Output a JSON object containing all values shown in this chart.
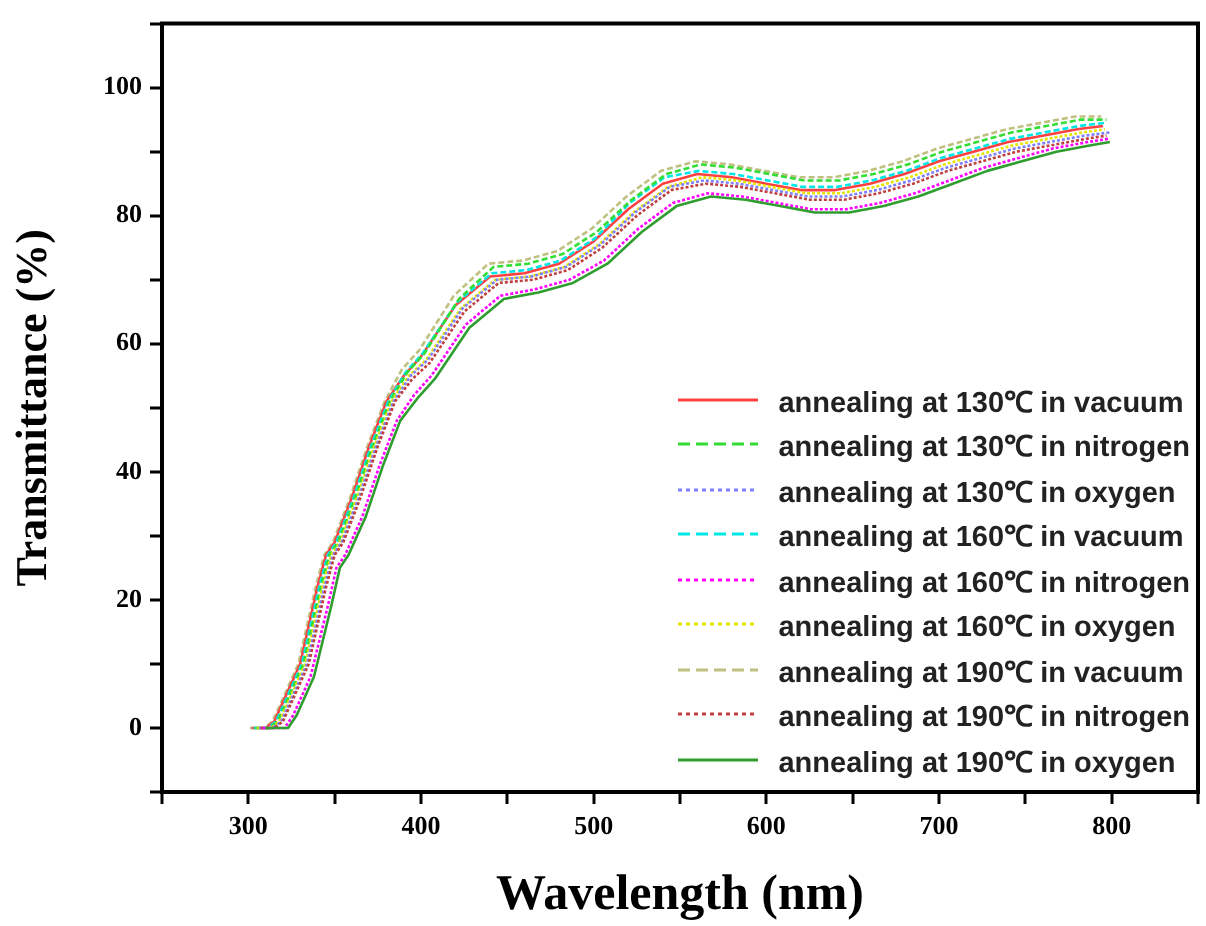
{
  "chart_data": {
    "type": "line",
    "xlabel": "Wavelength (nm)",
    "ylabel": "Transmittance (%)",
    "xlim": [
      250,
      850
    ],
    "xticks": [
      {
        "value": 250,
        "label": null
      },
      300,
      {
        "value": 350,
        "label": null
      },
      400,
      {
        "value": 450,
        "label": null
      },
      500,
      {
        "value": 550,
        "label": null
      },
      600,
      {
        "value": 650,
        "label": null
      },
      700,
      {
        "value": 750,
        "label": null
      },
      800,
      {
        "value": 850,
        "label": null
      }
    ],
    "ylim": [
      -10,
      110
    ],
    "yticks": [
      {
        "value": -10,
        "label": null
      },
      0,
      {
        "value": 10,
        "label": null
      },
      20,
      {
        "value": 30,
        "label": null
      },
      40,
      {
        "value": 50,
        "label": null
      },
      60,
      {
        "value": 70,
        "label": null
      },
      80,
      {
        "value": 90,
        "label": null
      },
      100,
      {
        "value": 110,
        "label": null
      }
    ],
    "grid": false,
    "legend": "right",
    "marker": "none",
    "series": [
      {
        "name": "annealing at 130℃ in vacuum",
        "color": "#ff4040",
        "line_style": "solid",
        "x": [
          302,
          310,
          315,
          320,
          330,
          340,
          345,
          350,
          360,
          370,
          380,
          390,
          400,
          420,
          440,
          460,
          480,
          500,
          520,
          540,
          560,
          580,
          600,
          620,
          640,
          660,
          680,
          700,
          720,
          740,
          760,
          780,
          795
        ],
        "values": [
          0,
          0,
          1,
          4,
          10,
          22,
          27,
          29,
          36,
          44,
          51,
          55,
          58,
          66,
          70.5,
          71,
          72.5,
          76,
          81,
          85,
          86.5,
          86,
          85,
          84,
          84,
          85,
          86.5,
          88.5,
          90,
          91.5,
          92.5,
          93.5,
          94
        ]
      },
      {
        "name": "annealing at 130℃ in nitrogen",
        "color": "#33dd33",
        "line_style": "dashed",
        "x": [
          304,
          312,
          317,
          322,
          332,
          342,
          347,
          352,
          362,
          372,
          382,
          392,
          402,
          422,
          442,
          462,
          482,
          502,
          522,
          542,
          562,
          582,
          602,
          622,
          642,
          662,
          682,
          702,
          722,
          742,
          762,
          782,
          797
        ],
        "values": [
          0,
          0,
          1,
          4,
          10,
          22,
          27,
          29,
          36,
          44,
          51,
          55.5,
          58.5,
          67,
          72,
          72.5,
          74,
          77.5,
          82.5,
          86.5,
          88,
          87.5,
          86.5,
          85.5,
          85.5,
          86.5,
          88,
          90,
          91.5,
          93,
          94,
          95,
          95
        ]
      },
      {
        "name": "annealing at 130℃ in oxygen",
        "color": "#8080ff",
        "line_style": "dotted",
        "x": [
          306,
          314,
          319,
          324,
          334,
          344,
          349,
          354,
          364,
          374,
          384,
          394,
          404,
          424,
          444,
          464,
          484,
          504,
          524,
          544,
          564,
          584,
          604,
          624,
          644,
          664,
          684,
          704,
          724,
          744,
          764,
          784,
          799
        ],
        "values": [
          0,
          0,
          1,
          4,
          10,
          22,
          27,
          29,
          36,
          44,
          51,
          55,
          57.5,
          65.5,
          70,
          70.5,
          72,
          75.5,
          80.5,
          84.5,
          85.5,
          85,
          84,
          83,
          83,
          84,
          85.5,
          87.5,
          89,
          90.5,
          91.5,
          92.5,
          93
        ]
      },
      {
        "name": "annealing at 160℃ in vacuum",
        "color": "#00e5e5",
        "line_style": "dashed",
        "x": [
          303,
          311,
          316,
          321,
          331,
          341,
          346,
          351,
          361,
          371,
          381,
          391,
          401,
          421,
          441,
          461,
          481,
          501,
          521,
          541,
          561,
          581,
          601,
          621,
          641,
          661,
          681,
          701,
          721,
          741,
          761,
          781,
          796
        ],
        "values": [
          0,
          0,
          1,
          4,
          10,
          22,
          27,
          29,
          36,
          44,
          51,
          55.5,
          58.5,
          66.5,
          71,
          71.5,
          73,
          76.5,
          82,
          86,
          87,
          86.5,
          85.5,
          84.5,
          84.5,
          85.5,
          87,
          89,
          90.5,
          92,
          93,
          94,
          94.5
        ]
      },
      {
        "name": "annealing at 160℃ in nitrogen",
        "color": "#ff00ff",
        "line_style": "dotted",
        "x": [
          308,
          316,
          321,
          326,
          336,
          346,
          351,
          356,
          366,
          376,
          386,
          396,
          406,
          426,
          446,
          466,
          486,
          506,
          526,
          546,
          566,
          586,
          606,
          626,
          646,
          666,
          686,
          706,
          726,
          746,
          766,
          786,
          798
        ],
        "values": [
          0,
          0,
          0,
          2,
          8,
          19,
          25,
          27,
          33,
          41,
          48,
          52,
          55,
          63,
          67.5,
          68.5,
          70,
          73,
          78,
          82,
          83.5,
          83,
          82,
          81,
          81,
          82,
          83.5,
          85.5,
          87.5,
          89,
          90.5,
          91.5,
          92
        ]
      },
      {
        "name": "annealing at 160℃ in oxygen",
        "color": "#e5e500",
        "line_style": "dotted",
        "x": [
          305,
          313,
          318,
          323,
          333,
          343,
          348,
          353,
          363,
          373,
          383,
          393,
          403,
          423,
          443,
          463,
          483,
          503,
          523,
          543,
          563,
          583,
          603,
          623,
          643,
          663,
          683,
          703,
          723,
          743,
          763,
          783,
          796
        ],
        "values": [
          0,
          0,
          1,
          4,
          10,
          22,
          27,
          29,
          36,
          44,
          51,
          55,
          57.5,
          65.5,
          70,
          70.5,
          72,
          75.5,
          80.5,
          84.5,
          86,
          85.5,
          84.5,
          83.5,
          83.5,
          84.5,
          86,
          88,
          89.5,
          91,
          92,
          93,
          93.5
        ]
      },
      {
        "name": "annealing at 190℃ in vacuum",
        "color": "#c0c080",
        "line_style": "dashed",
        "x": [
          301,
          309,
          314,
          319,
          329,
          339,
          344,
          349,
          359,
          369,
          379,
          389,
          399,
          419,
          439,
          459,
          479,
          499,
          519,
          539,
          559,
          579,
          599,
          619,
          639,
          659,
          679,
          699,
          719,
          739,
          759,
          779,
          794
        ],
        "values": [
          0,
          0,
          1,
          4,
          10,
          22,
          27,
          29,
          36,
          44,
          51,
          56,
          59,
          67.5,
          72.5,
          73,
          74.5,
          78,
          83,
          87,
          88.5,
          88,
          87,
          86,
          86,
          87,
          88.5,
          90.5,
          92,
          93.5,
          94.5,
          95.5,
          95.5
        ]
      },
      {
        "name": "annealing at 190℃ in nitrogen",
        "color": "#c04040",
        "line_style": "dotted",
        "x": [
          307,
          315,
          320,
          325,
          335,
          345,
          350,
          355,
          365,
          375,
          385,
          395,
          405,
          425,
          445,
          465,
          485,
          505,
          525,
          545,
          565,
          585,
          605,
          625,
          645,
          665,
          685,
          705,
          725,
          745,
          765,
          785,
          797
        ],
        "values": [
          0,
          0,
          1,
          4,
          10,
          22,
          27,
          29,
          36,
          44,
          51,
          54.5,
          57,
          65,
          69.5,
          70,
          71.5,
          75,
          80,
          84,
          85,
          84.5,
          83.5,
          82.5,
          82.5,
          83.5,
          85,
          87,
          88.5,
          90,
          91,
          92,
          92.5
        ]
      },
      {
        "name": "annealing at 190℃ in oxygen",
        "color": "#2e9e2e",
        "line_style": "solid",
        "x": [
          310,
          318,
          323,
          328,
          338,
          348,
          353,
          358,
          368,
          378,
          388,
          398,
          408,
          428,
          448,
          468,
          488,
          508,
          528,
          548,
          568,
          588,
          608,
          628,
          648,
          668,
          688,
          708,
          728,
          748,
          768,
          788,
          799
        ],
        "values": [
          0,
          0,
          0,
          2,
          8,
          19,
          25,
          27,
          33,
          41,
          48,
          51.5,
          54.5,
          62.5,
          67,
          68,
          69.5,
          72.5,
          77.5,
          81.5,
          83,
          82.5,
          81.5,
          80.5,
          80.5,
          81.5,
          83,
          85,
          87,
          88.5,
          90,
          91,
          91.5
        ]
      }
    ]
  }
}
